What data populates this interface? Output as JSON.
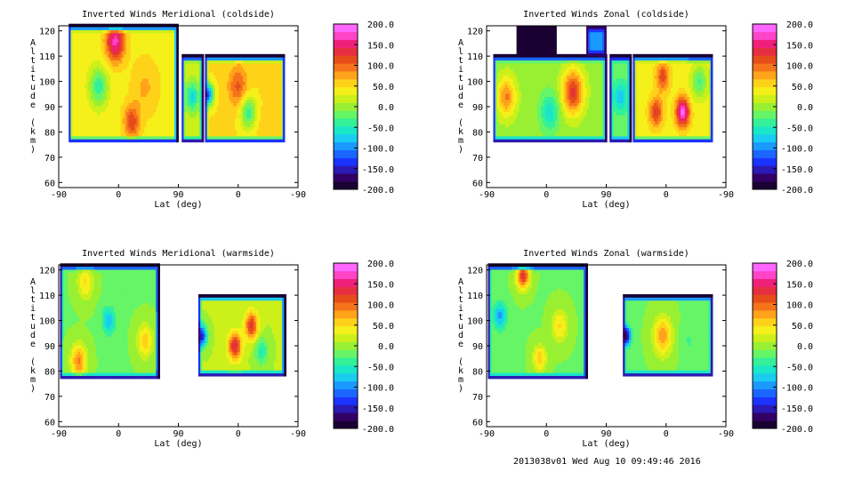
{
  "colors": {
    "colorbar": [
      "#1a0033",
      "#330066",
      "#2b1ab3",
      "#1a33ff",
      "#1a66ff",
      "#1a99ff",
      "#1accf0",
      "#1ae6c8",
      "#33f099",
      "#66f566",
      "#99f033",
      "#ccf01a",
      "#f5f01a",
      "#ffd21a",
      "#ffa31a",
      "#f5731a",
      "#e64d1a",
      "#e62e40",
      "#f0207a",
      "#ff44c8",
      "#ff66ff"
    ],
    "axis": "#000000"
  },
  "chart_data": [
    {
      "type": "heatmap",
      "title": "Inverted Winds Meridional (coldside)",
      "xlabel": "Lat (deg)",
      "ylabel": "Altitude (km)",
      "x_ticks": [
        "-90",
        "0",
        "90",
        "0",
        "-90"
      ],
      "y_ticks": [
        "60",
        "70",
        "80",
        "90",
        "100",
        "110",
        "120"
      ],
      "ylim": [
        58,
        122
      ],
      "colorbar_ticks": [
        "200.0",
        "150.0",
        "100.0",
        "50.0",
        "0.0",
        "-50.0",
        "-100.0",
        "-150.0",
        "-200.0"
      ],
      "colorbar_range": [
        -200,
        200
      ],
      "regions": [
        {
          "x": [
            -75,
            88
          ],
          "y": [
            76,
            122
          ],
          "base": 40,
          "features": [
            {
              "x": -5,
              "y": 116,
              "v": 170,
              "r": 14
            },
            {
              "x": 40,
              "y": 98,
              "v": 70,
              "r": 20
            },
            {
              "x": -30,
              "y": 98,
              "v": -40,
              "r": 14
            },
            {
              "x": 20,
              "y": 84,
              "v": 120,
              "r": 12
            }
          ]
        },
        {
          "x": [
            95,
            127
          ],
          "y": [
            76,
            110
          ],
          "base": 20,
          "features": [
            {
              "x": 111,
              "y": 94,
              "v": -70,
              "r": 10
            }
          ]
        },
        {
          "x": [
            130,
            250
          ],
          "y": [
            76,
            110
          ],
          "base": 50,
          "features": [
            {
              "x": 135,
              "y": 95,
              "v": -120,
              "r": 8
            },
            {
              "x": 180,
              "y": 98,
              "v": 110,
              "r": 14
            },
            {
              "x": 195,
              "y": 88,
              "v": -40,
              "r": 12
            },
            {
              "x": 220,
              "y": 82,
              "v": 60,
              "r": 12
            }
          ]
        }
      ]
    },
    {
      "type": "heatmap",
      "title": "Inverted Winds Zonal (coldside)",
      "xlabel": "Lat (deg)",
      "ylabel": "Altitude (km)",
      "x_ticks": [
        "-90",
        "0",
        "90",
        "0",
        "-90"
      ],
      "y_ticks": [
        "60",
        "70",
        "80",
        "90",
        "100",
        "110",
        "120"
      ],
      "ylim": [
        58,
        122
      ],
      "colorbar_ticks": [
        "200.0",
        "150.0",
        "100.0",
        "50.0",
        "0.0",
        "-50.0",
        "-100.0",
        "-150.0",
        "-200.0"
      ],
      "colorbar_range": [
        -200,
        200
      ],
      "regions": [
        {
          "x": [
            -80,
            90
          ],
          "y": [
            76,
            110
          ],
          "base": 0,
          "features": [
            {
              "x": -60,
              "y": 94,
              "v": 90,
              "r": 14
            },
            {
              "x": 40,
              "y": 96,
              "v": 130,
              "r": 16
            },
            {
              "x": 5,
              "y": 88,
              "v": -60,
              "r": 14
            }
          ]
        },
        {
          "x": [
            -45,
            15
          ],
          "y": [
            110,
            122
          ],
          "base": -200,
          "features": []
        },
        {
          "x": [
            60,
            90
          ],
          "y": [
            110,
            122
          ],
          "base": -100,
          "features": []
        },
        {
          "x": [
            95,
            127
          ],
          "y": [
            76,
            110
          ],
          "base": -20,
          "features": [
            {
              "x": 111,
              "y": 94,
              "v": -80,
              "r": 10
            }
          ]
        },
        {
          "x": [
            130,
            250
          ],
          "y": [
            76,
            110
          ],
          "base": 40,
          "features": [
            {
              "x": 175,
              "y": 102,
              "v": 120,
              "r": 10
            },
            {
              "x": 205,
              "y": 88,
              "v": 190,
              "r": 10
            },
            {
              "x": 165,
              "y": 88,
              "v": 130,
              "r": 10
            },
            {
              "x": 230,
              "y": 100,
              "v": -30,
              "r": 12
            }
          ]
        }
      ]
    },
    {
      "type": "heatmap",
      "title": "Inverted Winds Meridional (warmside)",
      "xlabel": "Lat (deg)",
      "ylabel": "Altitude (km)",
      "x_ticks": [
        "-90",
        "0",
        "90",
        "0",
        "-90"
      ],
      "y_ticks": [
        "60",
        "70",
        "80",
        "90",
        "100",
        "110",
        "120"
      ],
      "ylim": [
        58,
        122
      ],
      "colorbar_ticks": [
        "200.0",
        "150.0",
        "100.0",
        "50.0",
        "0.0",
        "-50.0",
        "-100.0",
        "-150.0",
        "-200.0"
      ],
      "colorbar_range": [
        -200,
        200
      ],
      "regions": [
        {
          "x": [
            -88,
            60
          ],
          "y": [
            77,
            122
          ],
          "base": -10,
          "features": [
            {
              "x": -60,
              "y": 84,
              "v": 90,
              "r": 12
            },
            {
              "x": -15,
              "y": 100,
              "v": -80,
              "r": 10
            },
            {
              "x": 40,
              "y": 92,
              "v": 60,
              "r": 12
            },
            {
              "x": -50,
              "y": 115,
              "v": 50,
              "r": 12
            }
          ]
        },
        {
          "x": [
            120,
            250
          ],
          "y": [
            78,
            110
          ],
          "base": 10,
          "features": [
            {
              "x": 125,
              "y": 94,
              "v": -150,
              "r": 8
            },
            {
              "x": 175,
              "y": 90,
              "v": 140,
              "r": 10
            },
            {
              "x": 200,
              "y": 98,
              "v": 130,
              "r": 10
            },
            {
              "x": 215,
              "y": 88,
              "v": -50,
              "r": 10
            }
          ]
        }
      ]
    },
    {
      "type": "heatmap",
      "title": "Inverted Winds Zonal (warmside)",
      "xlabel": "Lat (deg)",
      "ylabel": "Altitude (km)",
      "x_ticks": [
        "-90",
        "0",
        "90",
        "0",
        "-90"
      ],
      "y_ticks": [
        "60",
        "70",
        "80",
        "90",
        "100",
        "110",
        "120"
      ],
      "ylim": [
        58,
        122
      ],
      "colorbar_ticks": [
        "200.0",
        "150.0",
        "100.0",
        "50.0",
        "0.0",
        "-50.0",
        "-100.0",
        "-150.0",
        "-200.0"
      ],
      "colorbar_range": [
        -200,
        200
      ],
      "regions": [
        {
          "x": [
            -88,
            60
          ],
          "y": [
            77,
            122
          ],
          "base": -10,
          "features": [
            {
              "x": -35,
              "y": 118,
              "v": 130,
              "r": 10
            },
            {
              "x": -70,
              "y": 102,
              "v": -90,
              "r": 10
            },
            {
              "x": 20,
              "y": 98,
              "v": 50,
              "r": 12
            },
            {
              "x": -10,
              "y": 85,
              "v": 60,
              "r": 10
            }
          ]
        },
        {
          "x": [
            115,
            250
          ],
          "y": [
            78,
            110
          ],
          "base": -10,
          "features": [
            {
              "x": 120,
              "y": 94,
              "v": -180,
              "r": 7
            },
            {
              "x": 175,
              "y": 94,
              "v": 80,
              "r": 14
            },
            {
              "x": 215,
              "y": 92,
              "v": -30,
              "r": 12
            }
          ]
        }
      ]
    }
  ],
  "footer": "2013038v01 Wed Aug 10 09:49:46 2016"
}
